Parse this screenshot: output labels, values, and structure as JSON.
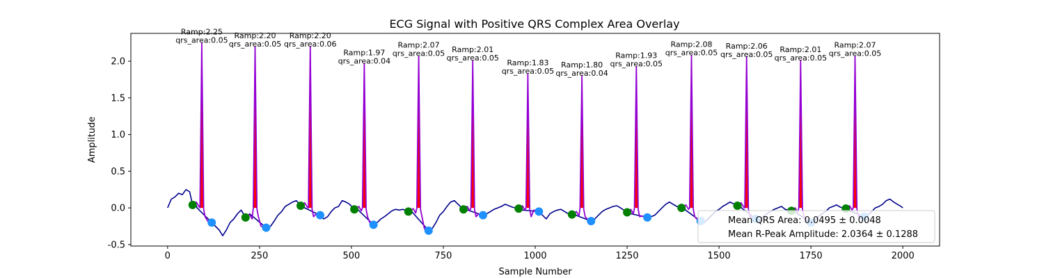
{
  "chart_data": {
    "type": "line",
    "title": "ECG Signal with Positive QRS Complex Area Overlay",
    "xlabel": "Sample Number",
    "ylabel": "Amplitude",
    "xlim": [
      -100,
      2100
    ],
    "ylim": [
      -0.52,
      2.38
    ],
    "xticks": [
      0,
      250,
      500,
      750,
      1000,
      1250,
      1500,
      1750,
      2000
    ],
    "yticks": [
      -0.5,
      0.0,
      0.5,
      1.0,
      1.5,
      2.0
    ],
    "grid": false,
    "legend_position": "lower-right",
    "colors": {
      "signal": "#00008b",
      "qrs_segment": "#9400d3",
      "qrs_area": "#ff0000",
      "onset_marker": "#008000",
      "offset_marker": "#1e90ff"
    },
    "beats": [
      {
        "r_sample": 93,
        "ramp": 2.25,
        "qrs_area": 0.05,
        "onset": [
          68,
          0.04
        ],
        "offset": [
          120,
          -0.2
        ]
      },
      {
        "r_sample": 238,
        "ramp": 2.2,
        "qrs_area": 0.05,
        "onset": [
          212,
          -0.13
        ],
        "offset": [
          268,
          -0.27
        ]
      },
      {
        "r_sample": 388,
        "ramp": 2.2,
        "qrs_area": 0.06,
        "onset": [
          362,
          0.03
        ],
        "offset": [
          415,
          -0.1
        ]
      },
      {
        "r_sample": 535,
        "ramp": 1.97,
        "qrs_area": 0.04,
        "onset": [
          508,
          -0.02
        ],
        "offset": [
          560,
          -0.23
        ]
      },
      {
        "r_sample": 683,
        "ramp": 2.07,
        "qrs_area": 0.05,
        "onset": [
          655,
          -0.05
        ],
        "offset": [
          710,
          -0.31
        ]
      },
      {
        "r_sample": 830,
        "ramp": 2.01,
        "qrs_area": 0.05,
        "onset": [
          805,
          -0.02
        ],
        "offset": [
          858,
          -0.1
        ]
      },
      {
        "r_sample": 980,
        "ramp": 1.83,
        "qrs_area": 0.05,
        "onset": [
          955,
          -0.01
        ],
        "offset": [
          1010,
          -0.05
        ]
      },
      {
        "r_sample": 1127,
        "ramp": 1.8,
        "qrs_area": 0.04,
        "onset": [
          1100,
          -0.09
        ],
        "offset": [
          1152,
          -0.18
        ]
      },
      {
        "r_sample": 1275,
        "ramp": 1.93,
        "qrs_area": 0.05,
        "onset": [
          1250,
          -0.06
        ],
        "offset": [
          1305,
          -0.13
        ]
      },
      {
        "r_sample": 1425,
        "ramp": 2.08,
        "qrs_area": 0.05,
        "onset": [
          1398,
          0.0
        ],
        "offset": [
          1450,
          -0.18
        ]
      },
      {
        "r_sample": 1575,
        "ramp": 2.06,
        "qrs_area": 0.05,
        "onset": [
          1550,
          0.03
        ],
        "offset": [
          1600,
          -0.15
        ]
      },
      {
        "r_sample": 1722,
        "ramp": 2.01,
        "qrs_area": 0.05,
        "onset": [
          1697,
          -0.04
        ],
        "offset": [
          1750,
          -0.2
        ]
      },
      {
        "r_sample": 1870,
        "ramp": 2.07,
        "qrs_area": 0.05,
        "onset": [
          1845,
          -0.01
        ],
        "offset": [
          1895,
          -0.12
        ]
      }
    ],
    "baseline_signal": {
      "x": [
        0,
        10,
        20,
        30,
        40,
        50,
        60,
        68,
        75,
        80,
        120,
        130,
        140,
        150,
        160,
        170,
        180,
        190,
        200,
        212,
        218,
        223,
        268,
        280,
        290,
        300,
        310,
        320,
        330,
        340,
        350,
        362,
        368,
        373,
        415,
        425,
        435,
        445,
        455,
        465,
        475,
        485,
        495,
        508,
        514,
        519,
        560,
        570,
        580,
        590,
        600,
        610,
        620,
        630,
        640,
        655,
        661,
        666,
        710,
        720,
        730,
        740,
        750,
        760,
        770,
        780,
        790,
        805,
        811,
        816,
        858,
        868,
        878,
        888,
        898,
        908,
        918,
        928,
        938,
        955,
        961,
        966,
        1010,
        1020,
        1030,
        1040,
        1050,
        1060,
        1070,
        1080,
        1090,
        1100,
        1106,
        1111,
        1152,
        1162,
        1172,
        1182,
        1192,
        1202,
        1212,
        1222,
        1232,
        1250,
        1256,
        1261,
        1305,
        1315,
        1325,
        1335,
        1345,
        1355,
        1365,
        1375,
        1385,
        1398,
        1404,
        1409,
        1450,
        1460,
        1470,
        1480,
        1490,
        1500,
        1510,
        1520,
        1530,
        1550,
        1556,
        1561,
        1600,
        1610,
        1620,
        1630,
        1640,
        1650,
        1660,
        1670,
        1680,
        1697,
        1703,
        1708,
        1750,
        1760,
        1770,
        1780,
        1790,
        1800,
        1810,
        1820,
        1830,
        1845,
        1851,
        1856,
        1895,
        1905,
        1915,
        1925,
        1935,
        1945,
        1955,
        1965,
        1975,
        1985,
        1995,
        2000
      ],
      "y": [
        0.0,
        0.12,
        0.15,
        0.2,
        0.18,
        0.25,
        0.22,
        0.04,
        0.08,
        0.0,
        -0.2,
        -0.25,
        -0.3,
        -0.38,
        -0.3,
        -0.2,
        -0.15,
        -0.08,
        -0.03,
        -0.13,
        -0.12,
        -0.08,
        -0.27,
        -0.25,
        -0.18,
        -0.1,
        -0.05,
        0.02,
        0.05,
        0.08,
        0.1,
        0.03,
        0.05,
        0.0,
        -0.1,
        -0.15,
        -0.12,
        -0.05,
        0.0,
        0.02,
        0.1,
        0.08,
        0.05,
        -0.02,
        0.0,
        -0.03,
        -0.23,
        -0.2,
        -0.15,
        -0.12,
        -0.08,
        -0.04,
        -0.02,
        -0.03,
        -0.02,
        -0.05,
        -0.03,
        -0.06,
        -0.31,
        -0.28,
        -0.2,
        -0.1,
        -0.05,
        0.02,
        0.08,
        0.1,
        0.05,
        -0.02,
        0.0,
        -0.03,
        -0.1,
        -0.08,
        -0.05,
        -0.02,
        0.0,
        0.02,
        0.05,
        0.03,
        0.01,
        -0.01,
        0.02,
        -0.03,
        -0.05,
        -0.1,
        -0.15,
        -0.08,
        -0.05,
        -0.03,
        -0.02,
        -0.05,
        -0.08,
        -0.09,
        -0.07,
        -0.1,
        -0.18,
        -0.15,
        -0.1,
        -0.05,
        -0.02,
        0.0,
        0.02,
        0.03,
        0.0,
        -0.06,
        -0.04,
        -0.08,
        -0.13,
        -0.12,
        -0.1,
        -0.05,
        0.0,
        0.05,
        0.08,
        0.05,
        0.02,
        0.0,
        0.02,
        -0.03,
        -0.18,
        -0.2,
        -0.15,
        -0.1,
        -0.05,
        -0.02,
        0.02,
        0.05,
        0.08,
        0.03,
        0.05,
        0.0,
        -0.15,
        -0.18,
        -0.12,
        -0.08,
        -0.05,
        -0.02,
        0.0,
        0.02,
        -0.02,
        -0.04,
        -0.02,
        -0.06,
        -0.2,
        -0.18,
        -0.12,
        -0.08,
        -0.05,
        0.0,
        0.02,
        0.04,
        0.01,
        -0.01,
        0.01,
        -0.04,
        -0.12,
        -0.1,
        -0.05,
        0.0,
        0.02,
        0.05,
        0.1,
        0.12,
        0.08,
        0.05,
        0.02,
        0.0
      ]
    },
    "annotation_format": {
      "ramp_prefix": "Ramp:",
      "area_prefix": "qrs_area:"
    },
    "legend": [
      "Mean QRS Area: 0.0495 ± 0.0048",
      "Mean R-Peak Amplitude: 2.0364 ± 0.1288"
    ]
  }
}
